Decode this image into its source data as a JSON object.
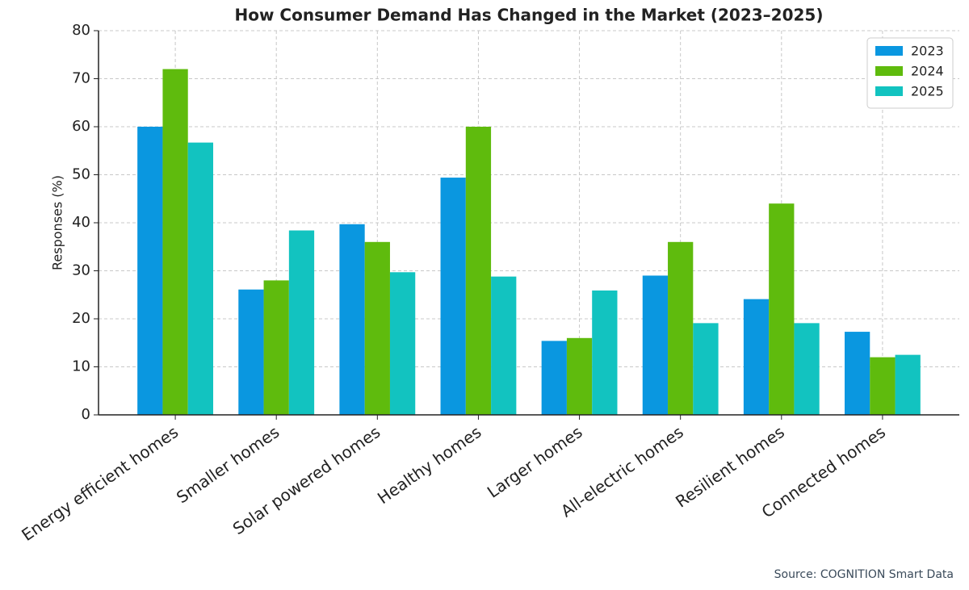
{
  "chart_data": {
    "type": "bar",
    "title": "How Consumer Demand Has Changed in the Market (2023–2025)",
    "y_label": "Responses (%)",
    "source": "Source: COGNITION Smart Data",
    "categories": [
      "Energy efficient homes",
      "Smaller homes",
      "Solar powered homes",
      "Healthy homes",
      "Larger homes",
      "All-electric homes",
      "Resilient homes",
      "Connected homes"
    ],
    "series": [
      {
        "name": "2023",
        "color": "#0a97e0",
        "values": [
          60,
          26.1,
          39.7,
          49.4,
          15.4,
          29,
          24.1,
          17.3
        ]
      },
      {
        "name": "2024",
        "color": "#5fbb0d",
        "values": [
          72,
          28,
          36,
          60,
          16,
          36,
          44,
          12
        ]
      },
      {
        "name": "2025",
        "color": "#12c3c0",
        "values": [
          56.7,
          38.4,
          29.7,
          28.8,
          25.9,
          19.1,
          19.1,
          12.5
        ]
      }
    ],
    "ylim": [
      0,
      80
    ],
    "yticks": [
      0,
      10,
      20,
      30,
      40,
      50,
      60,
      70,
      80
    ],
    "grid": true,
    "legend": "upper right"
  }
}
